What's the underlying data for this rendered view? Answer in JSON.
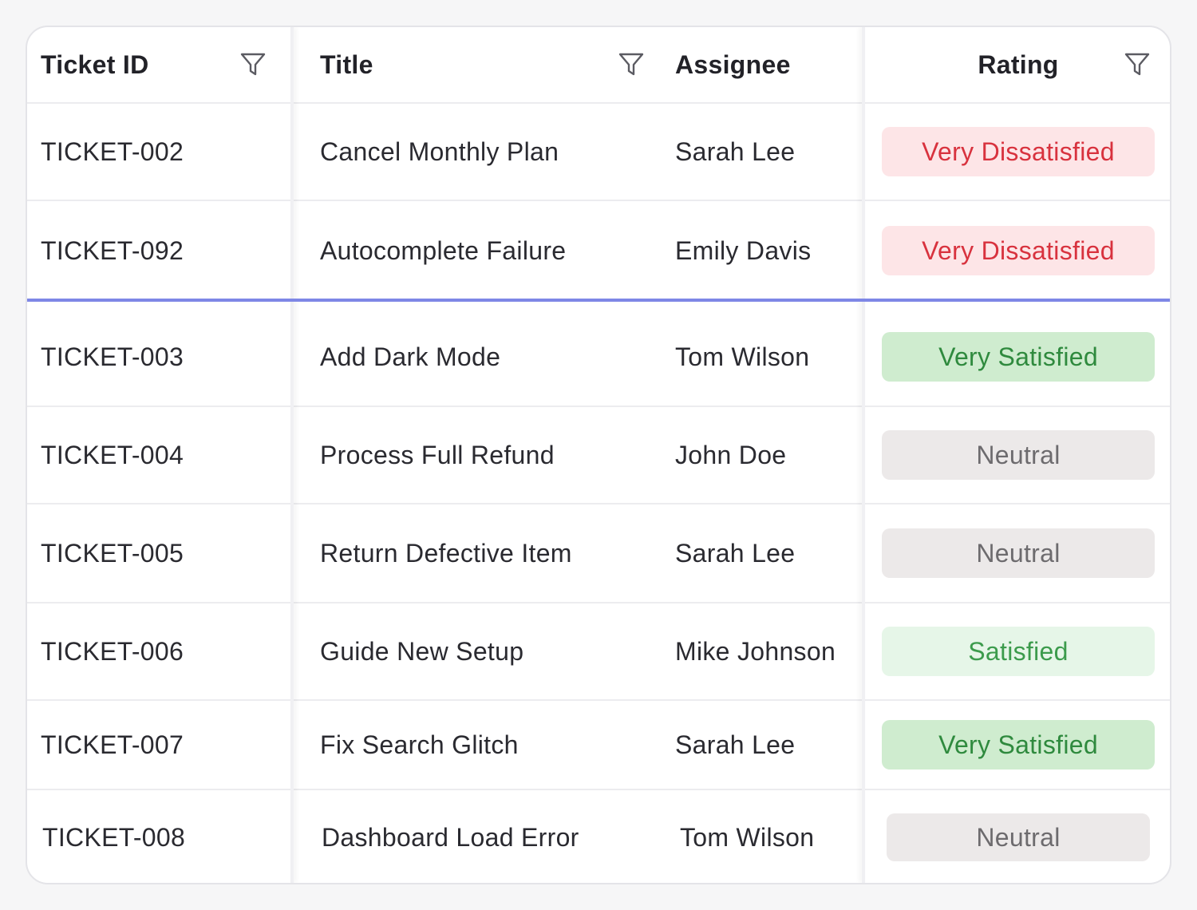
{
  "columns": {
    "ticket_id": "Ticket ID",
    "title": "Title",
    "assignee": "Assignee",
    "rating": "Rating"
  },
  "pinned_rows": [
    {
      "id": "TICKET-002",
      "title": "Cancel Monthly Plan",
      "assignee": "Sarah Lee",
      "rating": "Very Dissatisfied"
    },
    {
      "id": "TICKET-092",
      "title": "Autocomplete Failure",
      "assignee": "Emily Davis",
      "rating": "Very Dissatisfied"
    }
  ],
  "rows": [
    {
      "id": "TICKET-003",
      "title": "Add Dark Mode",
      "assignee": "Tom Wilson",
      "rating": "Very Satisfied"
    },
    {
      "id": "TICKET-004",
      "title": "Process Full Refund",
      "assignee": "John Doe",
      "rating": "Neutral"
    },
    {
      "id": "TICKET-005",
      "title": "Return Defective Item",
      "assignee": "Sarah Lee",
      "rating": "Neutral"
    },
    {
      "id": "TICKET-006",
      "title": "Guide New Setup",
      "assignee": "Mike Johnson",
      "rating": "Satisfied"
    },
    {
      "id": "TICKET-007",
      "title": "Fix Search Glitch",
      "assignee": "Sarah Lee",
      "rating": "Very Satisfied"
    },
    {
      "id": "TICKET-008",
      "title": "Dashboard Load Error",
      "assignee": "Tom Wilson",
      "rating": "Neutral"
    }
  ],
  "icons": {
    "filter": "filter-funnel-icon"
  },
  "colors": {
    "pinned_divider": "#7e87e6",
    "very_dissatisfied_bg": "#fde5e7",
    "very_dissatisfied_text": "#d8323e",
    "very_satisfied_bg": "#cfeccf",
    "very_satisfied_text": "#2f8a3e",
    "satisfied_bg": "#e6f6e8",
    "satisfied_text": "#3c9b4c",
    "neutral_bg": "#ece9e9",
    "neutral_text": "#6d6b6e"
  }
}
